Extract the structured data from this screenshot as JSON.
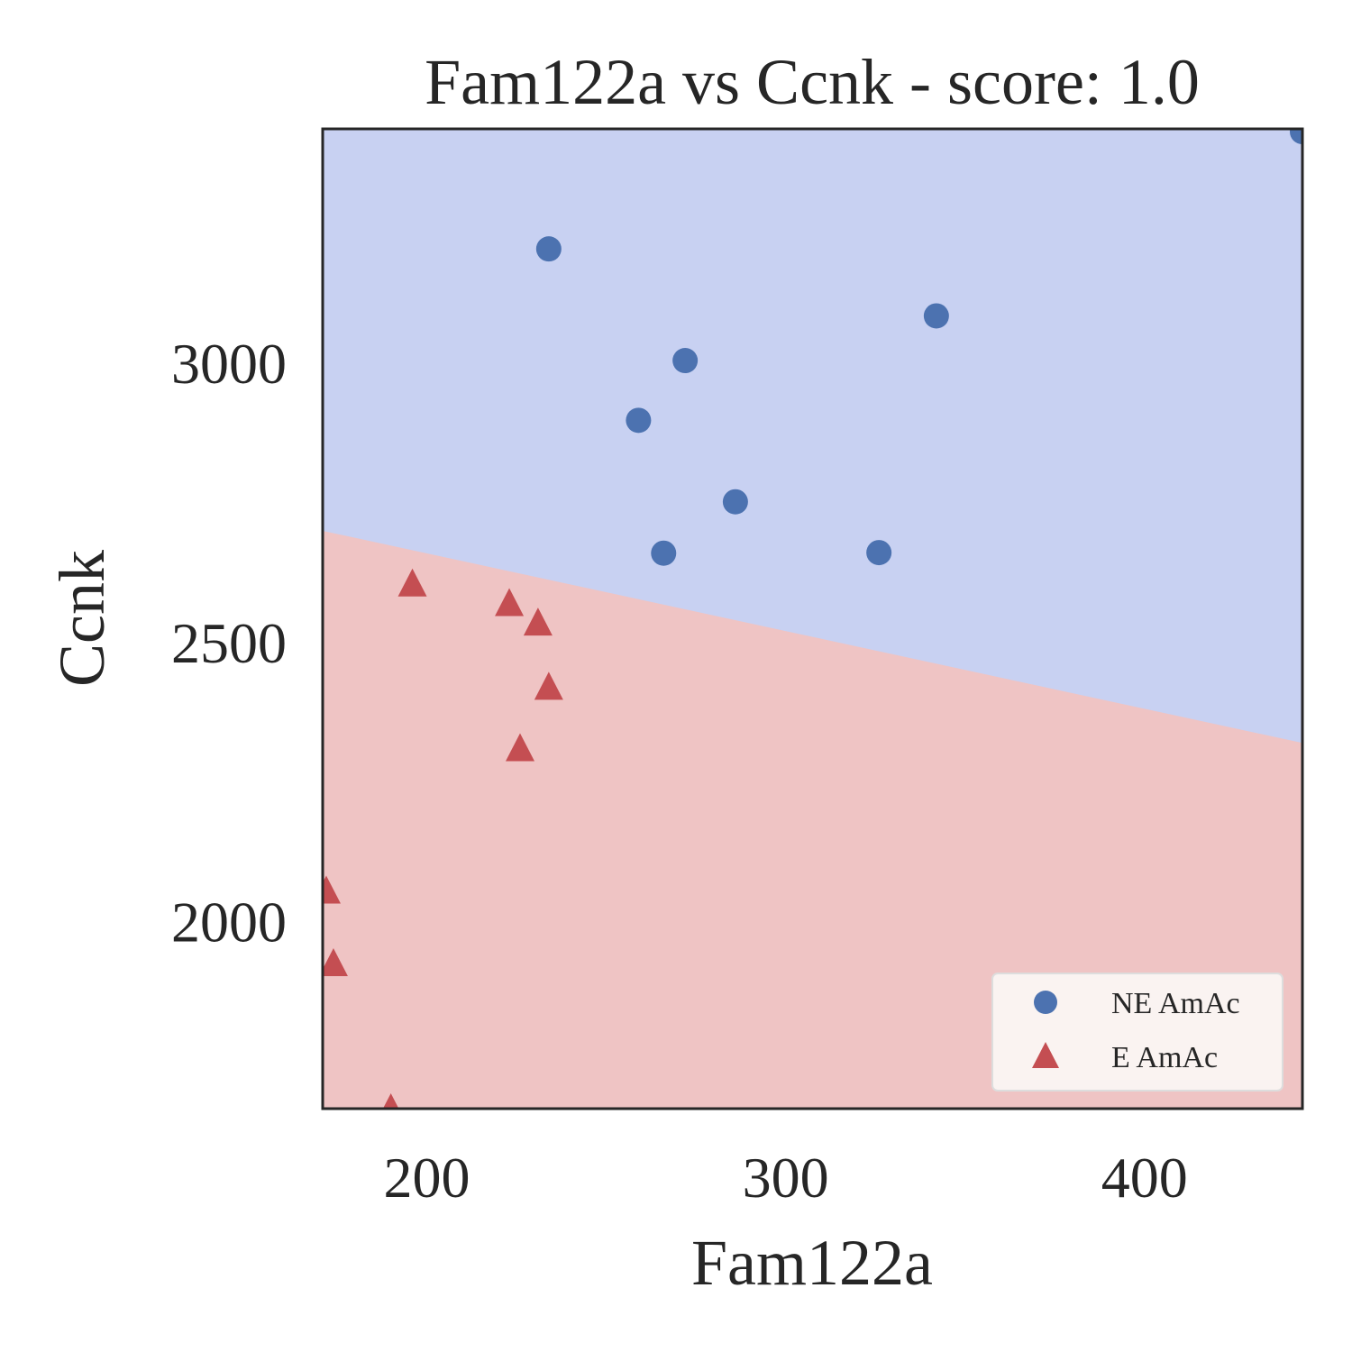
{
  "chart_data": {
    "type": "scatter",
    "title": "Fam122a vs Ccnk - score: 1.0",
    "xlabel": "Fam122a",
    "ylabel": "Ccnk",
    "xlim": [
      171,
      444
    ],
    "ylim": [
      1665,
      3420
    ],
    "xticks": [
      200,
      300,
      400
    ],
    "yticks": [
      2000,
      2500,
      3000
    ],
    "grid": false,
    "legend_position": "bottom-right",
    "decision_boundary": {
      "x": [
        171,
        444
      ],
      "y": [
        2700,
        2320
      ]
    },
    "colors": {
      "ne_marker": "#4c72b0",
      "e_marker": "#c44e52",
      "ne_region": "#c8d1f2",
      "e_region": "#efc4c4"
    },
    "series": [
      {
        "name": "NE AmAc",
        "marker": "circle",
        "points": [
          [
            444,
            3415
          ],
          [
            234,
            3205
          ],
          [
            342,
            3085
          ],
          [
            272,
            3005
          ],
          [
            259,
            2898
          ],
          [
            286,
            2752
          ],
          [
            266,
            2660
          ],
          [
            326,
            2661
          ]
        ]
      },
      {
        "name": "E AmAc",
        "marker": "triangle",
        "points": [
          [
            196,
            2605
          ],
          [
            223,
            2570
          ],
          [
            231,
            2535
          ],
          [
            234,
            2420
          ],
          [
            226,
            2310
          ],
          [
            172,
            2055
          ],
          [
            174,
            1925
          ],
          [
            190,
            1665
          ]
        ]
      }
    ]
  }
}
